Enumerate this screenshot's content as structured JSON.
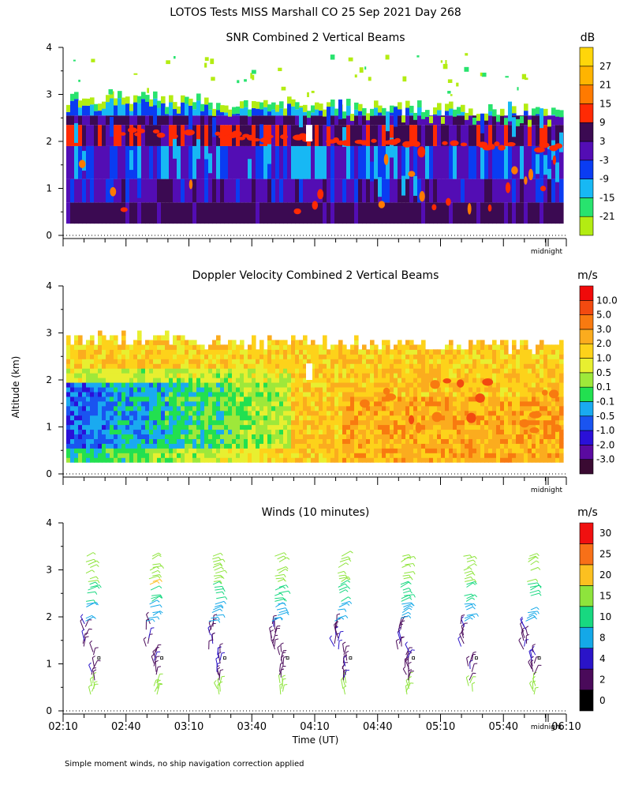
{
  "title": "LOTOS Tests MISS Marshall CO  25 Sep 2021 Day 268",
  "footnote": "Simple moment winds, no ship navigation correction applied",
  "chart_data": [
    {
      "id": "snr",
      "type": "heatmap",
      "title": "SNR Combined 2 Vertical Beams",
      "unit": "dB",
      "ylabel": "",
      "ylim": [
        0,
        4
      ],
      "yticks": [
        "0",
        "1",
        "2",
        "3",
        "4"
      ],
      "xlim_minutes": [
        130,
        370
      ],
      "midnight_label": "midnight",
      "levels": [
        "-21",
        "-15",
        "-9",
        "-3",
        "3",
        "9",
        "15",
        "21",
        "27"
      ],
      "colors": [
        "#b3ec12",
        "#28e36e",
        "#17b8f4",
        "#0a3cf2",
        "#530db4",
        "#3b0a52",
        "#ff2a04",
        "#ff7a00",
        "#ffb400",
        "#ffd60a"
      ]
    },
    {
      "id": "doppler",
      "type": "heatmap",
      "title": "Doppler Velocity Combined 2 Vertical Beams",
      "unit": "m/s",
      "ylabel": "Altitude (km)",
      "ylim": [
        0,
        4
      ],
      "yticks": [
        "0",
        "1",
        "2",
        "3",
        "4"
      ],
      "xlim_minutes": [
        130,
        370
      ],
      "midnight_label": "midnight",
      "levels": [
        "10.0",
        "5.0",
        "3.0",
        "2.0",
        "1.0",
        "0.5",
        "0.1",
        "-0.1",
        "-0.5",
        "-1.0",
        "-2.0",
        "-3.0"
      ],
      "colors": [
        "#3a0a32",
        "#5a0aa0",
        "#2a10d8",
        "#1a54f0",
        "#1aaaf0",
        "#22e050",
        "#9ee83a",
        "#e8ef30",
        "#fdd21a",
        "#fbac1e",
        "#f87a10",
        "#f24a10",
        "#f00a0a"
      ]
    },
    {
      "id": "winds",
      "type": "scatter",
      "title": "Winds (10 minutes)",
      "unit": "m/s",
      "ylabel": "",
      "xlabel": "Time (UT)",
      "ylim": [
        0,
        4
      ],
      "yticks": [
        "0",
        "1",
        "2",
        "3",
        "4"
      ],
      "xlim_minutes": [
        130,
        370
      ],
      "xticks": [
        "02:10",
        "02:40",
        "03:10",
        "03:40",
        "04:10",
        "04:40",
        "05:10",
        "05:40",
        "06:10"
      ],
      "midnight_label": "midnight",
      "levels": [
        "0",
        "2",
        "4",
        "8",
        "10",
        "15",
        "20",
        "25",
        "30"
      ],
      "colors": [
        "#000000",
        "#4a0a5a",
        "#2a14c8",
        "#14a8e8",
        "#18d880",
        "#8ee43c",
        "#fcc020",
        "#f87018",
        "#f01010"
      ],
      "profile_times_minutes": [
        145,
        175,
        205,
        235,
        265,
        295,
        325,
        355
      ]
    }
  ]
}
